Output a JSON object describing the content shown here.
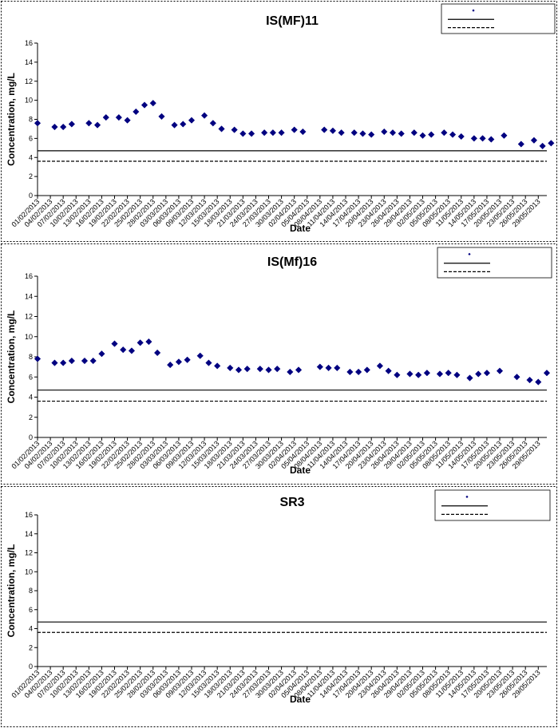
{
  "chart_data": [
    {
      "type": "scatter",
      "title": "IS(MF)11",
      "xlabel": "Date",
      "ylabel": "Concentration, mg/L",
      "ylim": [
        0,
        16
      ],
      "yticks": [
        0,
        2,
        4,
        6,
        8,
        10,
        12,
        14,
        16
      ],
      "xlim": [
        "01/02/2013",
        "31/05/2013"
      ],
      "x_tick_labels": [
        "01/02/2013",
        "04/02/2013",
        "07/02/2013",
        "10/02/2013",
        "13/02/2013",
        "16/02/2013",
        "19/02/2013",
        "22/02/2013",
        "25/02/2013",
        "28/02/2013",
        "03/03/2013",
        "06/03/2013",
        "09/03/2013",
        "12/03/2013",
        "15/03/2013",
        "18/03/2013",
        "21/03/2013",
        "24/03/2013",
        "27/03/2013",
        "30/03/2013",
        "02/04/2013",
        "05/04/2013",
        "08/04/2013",
        "11/04/2013",
        "14/04/2013",
        "17/04/2013",
        "20/04/2013",
        "23/04/2013",
        "26/04/2013",
        "29/04/2013",
        "02/05/2013",
        "05/05/2013",
        "08/05/2013",
        "11/05/2013",
        "14/05/2013",
        "17/05/2013",
        "20/05/2013",
        "23/05/2013",
        "26/05/2013",
        "29/05/2013"
      ],
      "grid": false,
      "legend_position": "top-right",
      "legend": [
        "",
        "",
        ""
      ],
      "color": "#000080",
      "series": [
        {
          "marker": "diamond",
          "points": [
            [
              "01/02/2013",
              7.6
            ],
            [
              "05/02/2013",
              7.2
            ],
            [
              "07/02/2013",
              7.2
            ],
            [
              "09/02/2013",
              7.5
            ],
            [
              "13/02/2013",
              7.6
            ],
            [
              "15/02/2013",
              7.4
            ],
            [
              "17/02/2013",
              8.2
            ],
            [
              "20/02/2013",
              8.2
            ],
            [
              "22/02/2013",
              7.9
            ],
            [
              "24/02/2013",
              8.8
            ],
            [
              "26/02/2013",
              9.5
            ],
            [
              "28/02/2013",
              9.7
            ],
            [
              "02/03/2013",
              8.3
            ],
            [
              "05/03/2013",
              7.4
            ],
            [
              "07/03/2013",
              7.5
            ],
            [
              "09/03/2013",
              7.9
            ],
            [
              "12/03/2013",
              8.4
            ],
            [
              "14/03/2013",
              7.6
            ],
            [
              "16/03/2013",
              7.0
            ],
            [
              "19/03/2013",
              6.9
            ],
            [
              "21/03/2013",
              6.5
            ],
            [
              "23/03/2013",
              6.5
            ],
            [
              "26/03/2013",
              6.6
            ],
            [
              "28/03/2013",
              6.6
            ],
            [
              "30/03/2013",
              6.6
            ],
            [
              "02/04/2013",
              6.9
            ],
            [
              "04/04/2013",
              6.7
            ],
            [
              "09/04/2013",
              6.9
            ],
            [
              "11/04/2013",
              6.8
            ],
            [
              "13/04/2013",
              6.6
            ],
            [
              "16/04/2013",
              6.6
            ],
            [
              "18/04/2013",
              6.5
            ],
            [
              "20/04/2013",
              6.4
            ],
            [
              "23/04/2013",
              6.7
            ],
            [
              "25/04/2013",
              6.6
            ],
            [
              "27/04/2013",
              6.5
            ],
            [
              "30/04/2013",
              6.6
            ],
            [
              "02/05/2013",
              6.3
            ],
            [
              "04/05/2013",
              6.4
            ],
            [
              "07/05/2013",
              6.6
            ],
            [
              "09/05/2013",
              6.4
            ],
            [
              "11/05/2013",
              6.2
            ],
            [
              "14/05/2013",
              6.0
            ],
            [
              "16/05/2013",
              6.0
            ],
            [
              "18/05/2013",
              5.9
            ],
            [
              "21/05/2013",
              6.3
            ],
            [
              "25/05/2013",
              5.4
            ],
            [
              "28/05/2013",
              5.8
            ],
            [
              "30/05/2013",
              5.2
            ],
            [
              "01/06/2013",
              5.5
            ]
          ]
        },
        {
          "style": "solid",
          "value": 4.7
        },
        {
          "style": "dashed",
          "value": 3.6
        }
      ]
    },
    {
      "type": "scatter",
      "title": "IS(Mf)16",
      "xlabel": "Date",
      "ylabel": "Concentration, mg/L",
      "ylim": [
        0,
        16
      ],
      "yticks": [
        0,
        2,
        4,
        6,
        8,
        10,
        12,
        14,
        16
      ],
      "xlim": [
        "01/02/2013",
        "31/05/2013"
      ],
      "x_tick_labels": [
        "01/02/2013",
        "04/02/2013",
        "07/02/2013",
        "10/02/2013",
        "13/02/2013",
        "16/02/2013",
        "19/02/2013",
        "22/02/2013",
        "25/02/2013",
        "28/02/2013",
        "03/03/2013",
        "06/03/2013",
        "09/03/2013",
        "12/03/2013",
        "15/03/2013",
        "18/03/2013",
        "21/03/2013",
        "24/03/2013",
        "27/03/2013",
        "30/03/2013",
        "02/04/2013",
        "05/04/2013",
        "08/04/2013",
        "11/04/2013",
        "14/04/2013",
        "17/04/2013",
        "20/04/2013",
        "23/04/2013",
        "26/04/2013",
        "29/04/2013",
        "02/05/2013",
        "05/05/2013",
        "08/05/2013",
        "11/05/2013",
        "14/05/2013",
        "17/05/2013",
        "20/05/2013",
        "23/05/2013",
        "26/05/2013",
        "29/05/2013"
      ],
      "grid": false,
      "legend_position": "top-right",
      "legend": [
        "",
        "",
        ""
      ],
      "color": "#000080",
      "series": [
        {
          "marker": "diamond",
          "points": [
            [
              "01/02/2013",
              7.8
            ],
            [
              "05/02/2013",
              7.4
            ],
            [
              "07/02/2013",
              7.4
            ],
            [
              "09/02/2013",
              7.6
            ],
            [
              "12/02/2013",
              7.6
            ],
            [
              "14/02/2013",
              7.6
            ],
            [
              "16/02/2013",
              8.3
            ],
            [
              "19/02/2013",
              9.3
            ],
            [
              "21/02/2013",
              8.7
            ],
            [
              "23/02/2013",
              8.6
            ],
            [
              "25/02/2013",
              9.4
            ],
            [
              "27/02/2013",
              9.5
            ],
            [
              "01/03/2013",
              8.4
            ],
            [
              "04/03/2013",
              7.2
            ],
            [
              "06/03/2013",
              7.5
            ],
            [
              "08/03/2013",
              7.7
            ],
            [
              "11/03/2013",
              8.1
            ],
            [
              "13/03/2013",
              7.4
            ],
            [
              "15/03/2013",
              7.1
            ],
            [
              "18/03/2013",
              6.9
            ],
            [
              "20/03/2013",
              6.7
            ],
            [
              "22/03/2013",
              6.8
            ],
            [
              "25/03/2013",
              6.8
            ],
            [
              "27/03/2013",
              6.7
            ],
            [
              "29/03/2013",
              6.8
            ],
            [
              "01/04/2013",
              6.5
            ],
            [
              "03/04/2013",
              6.7
            ],
            [
              "08/04/2013",
              7.0
            ],
            [
              "10/04/2013",
              6.9
            ],
            [
              "12/04/2013",
              6.9
            ],
            [
              "15/04/2013",
              6.5
            ],
            [
              "17/04/2013",
              6.5
            ],
            [
              "19/04/2013",
              6.7
            ],
            [
              "22/04/2013",
              7.1
            ],
            [
              "24/04/2013",
              6.6
            ],
            [
              "26/04/2013",
              6.2
            ],
            [
              "29/04/2013",
              6.3
            ],
            [
              "01/05/2013",
              6.2
            ],
            [
              "03/05/2013",
              6.4
            ],
            [
              "06/05/2013",
              6.3
            ],
            [
              "08/05/2013",
              6.4
            ],
            [
              "10/05/2013",
              6.2
            ],
            [
              "13/05/2013",
              5.9
            ],
            [
              "15/05/2013",
              6.3
            ],
            [
              "17/05/2013",
              6.4
            ],
            [
              "20/05/2013",
              6.6
            ],
            [
              "24/05/2013",
              6.0
            ],
            [
              "27/05/2013",
              5.7
            ],
            [
              "29/05/2013",
              5.5
            ],
            [
              "31/05/2013",
              6.4
            ]
          ]
        },
        {
          "style": "solid",
          "value": 4.7
        },
        {
          "style": "dashed",
          "value": 3.6
        }
      ]
    },
    {
      "type": "scatter",
      "title": "SR3",
      "xlabel": "Date",
      "ylabel": "Concentration, mg/L",
      "ylim": [
        0,
        16
      ],
      "yticks": [
        0,
        2,
        4,
        6,
        8,
        10,
        12,
        14,
        16
      ],
      "xlim": [
        "01/02/2013",
        "31/05/2013"
      ],
      "x_tick_labels": [
        "01/02/2013",
        "04/02/2013",
        "07/02/2013",
        "10/02/2013",
        "13/02/2013",
        "16/02/2013",
        "19/02/2013",
        "22/02/2013",
        "25/02/2013",
        "28/02/2013",
        "03/03/2013",
        "06/03/2013",
        "09/03/2013",
        "12/03/2013",
        "15/03/2013",
        "18/03/2013",
        "21/03/2013",
        "24/03/2013",
        "27/03/2013",
        "30/03/2013",
        "02/04/2013",
        "05/04/2013",
        "08/04/2013",
        "11/04/2013",
        "14/04/2013",
        "17/04/2013",
        "20/04/2013",
        "23/04/2013",
        "26/04/2013",
        "29/04/2013",
        "02/05/2013",
        "05/05/2013",
        "08/05/2013",
        "11/05/2013",
        "14/05/2013",
        "17/05/2013",
        "20/05/2013",
        "23/05/2013",
        "26/05/2013",
        "29/05/2013"
      ],
      "grid": false,
      "legend_position": "top-right",
      "legend": [
        "",
        "",
        ""
      ],
      "color": "#000080",
      "series": [
        {
          "marker": "diamond",
          "points": []
        },
        {
          "style": "solid",
          "value": 4.7
        },
        {
          "style": "dashed",
          "value": 3.6
        }
      ]
    }
  ]
}
